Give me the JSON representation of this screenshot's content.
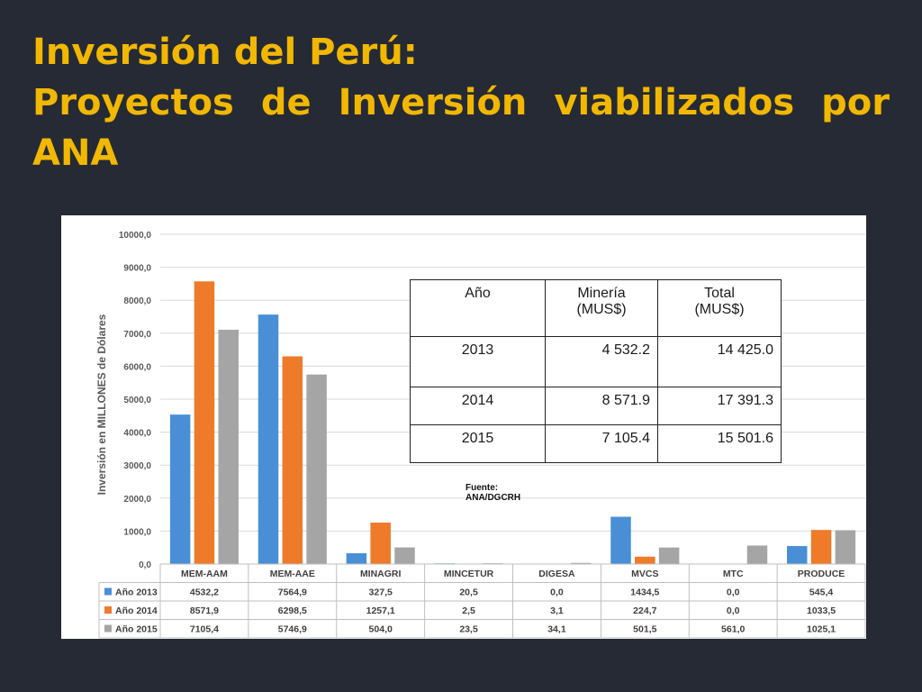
{
  "title": {
    "line1": "Inversión del Perú:",
    "line2": "Proyectos de Inversión viabilizados por",
    "line3": "ANA"
  },
  "table": {
    "headers": [
      {
        "line1": "Año",
        "line2": ""
      },
      {
        "line1": "Minería",
        "line2": "(MUS$)"
      },
      {
        "line1": "Total",
        "line2": "(MUS$)"
      }
    ],
    "rows": [
      {
        "year": "2013",
        "mineria": "4 532.2",
        "total": "14 425.0"
      },
      {
        "year": "2014",
        "mineria": "8 571.9",
        "total": "17 391.3"
      },
      {
        "year": "2015",
        "mineria": "7 105.4",
        "total": "15 501.6"
      }
    ]
  },
  "source": {
    "line1": "Fuente:",
    "line2": "ANA/DGCRH"
  },
  "chart_data": {
    "type": "bar",
    "ylabel": "Inversión en MILLONES de Dólares",
    "ylim": [
      0,
      10000
    ],
    "ytick_labels": [
      "0,0",
      "1000,0",
      "2000,0",
      "3000,0",
      "4000,0",
      "5000,0",
      "6000,0",
      "7000,0",
      "8000,0",
      "9000,0",
      "10000,0"
    ],
    "grid": true,
    "legend": "data-table",
    "categories": [
      "MEM-AAM",
      "MEM-AAE",
      "MINAGRI",
      "MINCETUR",
      "DIGESA",
      "MVCS",
      "MTC",
      "PRODUCE"
    ],
    "series": [
      {
        "name": "Año 2013",
        "color": "#4a8fd6",
        "values": [
          4532.2,
          7564.9,
          327.5,
          20.5,
          0.0,
          1434.5,
          0.0,
          545.4
        ],
        "labels": [
          "4532,2",
          "7564,9",
          "327,5",
          "20,5",
          "0,0",
          "1434,5",
          "0,0",
          "545,4"
        ]
      },
      {
        "name": "Año 2014",
        "color": "#ee7a2a",
        "values": [
          8571.9,
          6298.5,
          1257.1,
          2.5,
          3.1,
          224.7,
          0.0,
          1033.5
        ],
        "labels": [
          "8571,9",
          "6298,5",
          "1257,1",
          "2,5",
          "3,1",
          "224,7",
          "0,0",
          "1033,5"
        ]
      },
      {
        "name": "Año 2015",
        "color": "#a5a5a5",
        "values": [
          7105.4,
          5746.9,
          504.0,
          23.5,
          34.1,
          501.5,
          561.0,
          1025.1
        ],
        "labels": [
          "7105,4",
          "5746,9",
          "504,0",
          "23,5",
          "34,1",
          "501,5",
          "561,0",
          "1025,1"
        ]
      }
    ]
  }
}
